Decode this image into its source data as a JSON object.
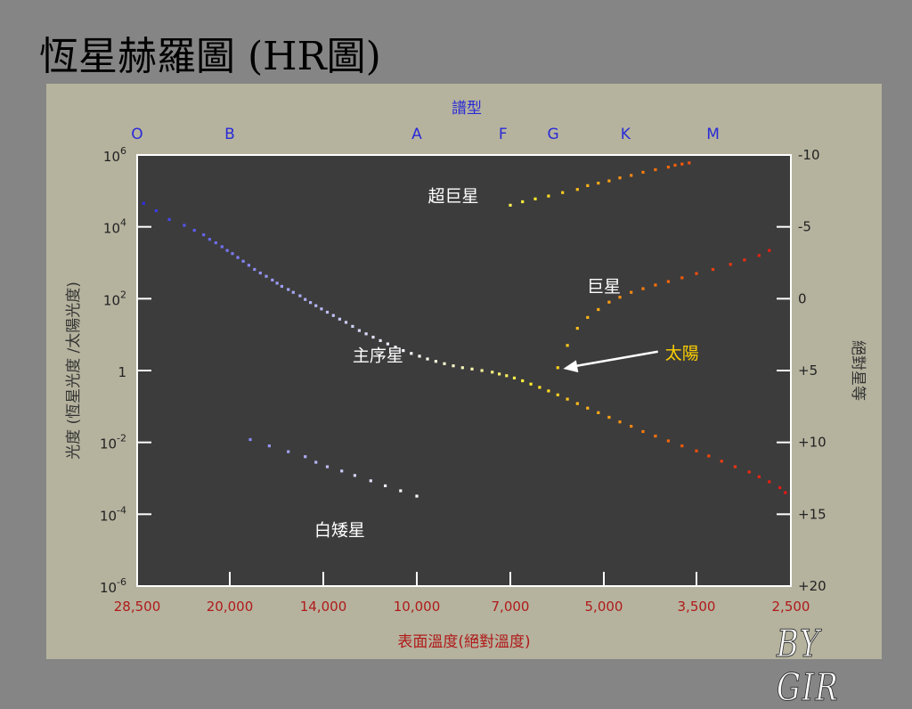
{
  "slide": {
    "title": "恆星赫羅圖 (HR圖)",
    "signature": "BY GIR"
  },
  "chart_data": {
    "type": "scatter",
    "title": "",
    "top_axis": {
      "title": "譜型",
      "labels": [
        "O",
        "B",
        "A",
        "F",
        "G",
        "K",
        "M"
      ],
      "temps": [
        28500,
        20000,
        10000,
        7200,
        6000,
        4600,
        3300
      ],
      "color": "#2a2ad6"
    },
    "x_axis": {
      "title": "表面溫度(絕對溫度)",
      "tick_labels": [
        "28,500",
        "20,000",
        "14,000",
        "10,000",
        "7,000",
        "5,000",
        "3,500",
        "2,500"
      ],
      "tick_values": [
        28500,
        20000,
        14000,
        10000,
        7000,
        5000,
        3500,
        2500
      ],
      "range": [
        28500,
        2500
      ],
      "direction": "reversed",
      "color": "#b01a1a"
    },
    "y_left": {
      "title": "光度 (恆星光度 /太陽光度)",
      "scale": "log",
      "tick_values": [
        1000000,
        10000,
        100,
        1,
        0.01,
        0.0001,
        1e-06
      ],
      "tick_labels": [
        {
          "base": "10",
          "exp": "6"
        },
        {
          "base": "10",
          "exp": "4"
        },
        {
          "base": "10",
          "exp": "2"
        },
        {
          "base": "1",
          "exp": ""
        },
        {
          "base": "10",
          "exp": "-2"
        },
        {
          "base": "10",
          "exp": "-4"
        },
        {
          "base": "10",
          "exp": "-6"
        }
      ],
      "range": [
        1e-06,
        1000000
      ]
    },
    "y_right": {
      "title": "絕對星等",
      "tick_labels": [
        "-10",
        "-5",
        "0",
        "+5",
        "+10",
        "+15",
        "+20"
      ],
      "tick_values": [
        -10,
        -5,
        0,
        5,
        10,
        15,
        20
      ],
      "range": [
        -10,
        20
      ]
    },
    "groups": [
      {
        "name": "主序星",
        "label_temp": 11500,
        "label_lum": 1.8
      },
      {
        "name": "超巨星",
        "label_temp": 8700,
        "label_lum": 50000
      },
      {
        "name": "巨星",
        "label_temp": 5000,
        "label_lum": 150
      },
      {
        "name": "白矮星",
        "label_temp": 13200,
        "label_lum": 2.51e-05
      }
    ],
    "annotations": [
      {
        "text": "太陽",
        "text_temp": 3950,
        "text_lum": 3,
        "point_temp": 5900,
        "point_lum": 1,
        "color": "#ffd000"
      }
    ],
    "series": [
      {
        "name": "主序星",
        "x": [
          27800,
          26500,
          25200,
          23800,
          22900,
          22100,
          21600,
          21100,
          20600,
          20200,
          19800,
          19400,
          19000,
          18600,
          18200,
          17800,
          17400,
          17000,
          16700,
          16400,
          16000,
          15700,
          15300,
          15000,
          14700,
          14400,
          14100,
          13800,
          13500,
          13200,
          12900,
          12600,
          12300,
          12000,
          11700,
          11400,
          11100,
          10800,
          10500,
          10200,
          9900,
          9600,
          9300,
          9000,
          8700,
          8400,
          8100,
          7800,
          7500,
          7300,
          7100,
          6900,
          6700,
          6500,
          6300,
          6100,
          5900,
          5700,
          5500,
          5300,
          5100,
          4900,
          4700,
          4500,
          4300,
          4100,
          3900,
          3700,
          3500,
          3350,
          3200,
          3050,
          2900,
          2800,
          2700,
          2600,
          2550
        ],
        "y": [
          45000,
          28000,
          16000,
          11000,
          8000,
          6000,
          4500,
          3600,
          2800,
          2200,
          1800,
          1400,
          1100,
          850,
          650,
          520,
          420,
          330,
          270,
          220,
          180,
          150,
          120,
          95,
          78,
          64,
          52,
          42,
          34,
          27,
          22,
          17,
          13,
          10.5,
          8.5,
          6.8,
          5.5,
          4.5,
          3.6,
          3.0,
          2.5,
          2.1,
          1.8,
          1.55,
          1.35,
          1.2,
          1.1,
          1.0,
          0.9,
          0.8,
          0.72,
          0.62,
          0.52,
          0.42,
          0.34,
          0.27,
          0.21,
          0.16,
          0.12,
          0.09,
          0.067,
          0.05,
          0.037,
          0.028,
          0.02,
          0.015,
          0.011,
          0.008,
          0.0058,
          0.0042,
          0.003,
          0.0021,
          0.0015,
          0.0011,
          0.0008,
          0.00055,
          0.0004
        ]
      },
      {
        "name": "超巨星",
        "x": [
          7000,
          6700,
          6400,
          6100,
          5800,
          5500,
          5300,
          5100,
          4900,
          4700,
          4500,
          4300,
          4100,
          3900,
          3800,
          3700,
          3600
        ],
        "y": [
          40000,
          50000,
          60000,
          72000,
          90000,
          110000,
          140000,
          165000,
          190000,
          230000,
          270000,
          330000,
          390000,
          460000,
          520000,
          560000,
          600000
        ]
      },
      {
        "name": "巨星",
        "x": [
          5900,
          5700,
          5500,
          5300,
          5100,
          4900,
          4700,
          4500,
          4300,
          4100,
          3900,
          3700,
          3500,
          3300,
          3100,
          2950,
          2800,
          2700
        ],
        "y": [
          1.2,
          5,
          15,
          30,
          50,
          80,
          110,
          150,
          190,
          240,
          300,
          380,
          500,
          650,
          900,
          1200,
          1600,
          2200
        ]
      },
      {
        "name": "白矮星",
        "x": [
          18500,
          17200,
          16000,
          15000,
          14400,
          13800,
          13100,
          12500,
          11800,
          11200,
          10600,
          10000
        ],
        "y": [
          0.012,
          0.008,
          0.0055,
          0.004,
          0.0028,
          0.0021,
          0.0016,
          0.0012,
          0.00085,
          0.00062,
          0.00045,
          0.00032
        ]
      }
    ]
  }
}
